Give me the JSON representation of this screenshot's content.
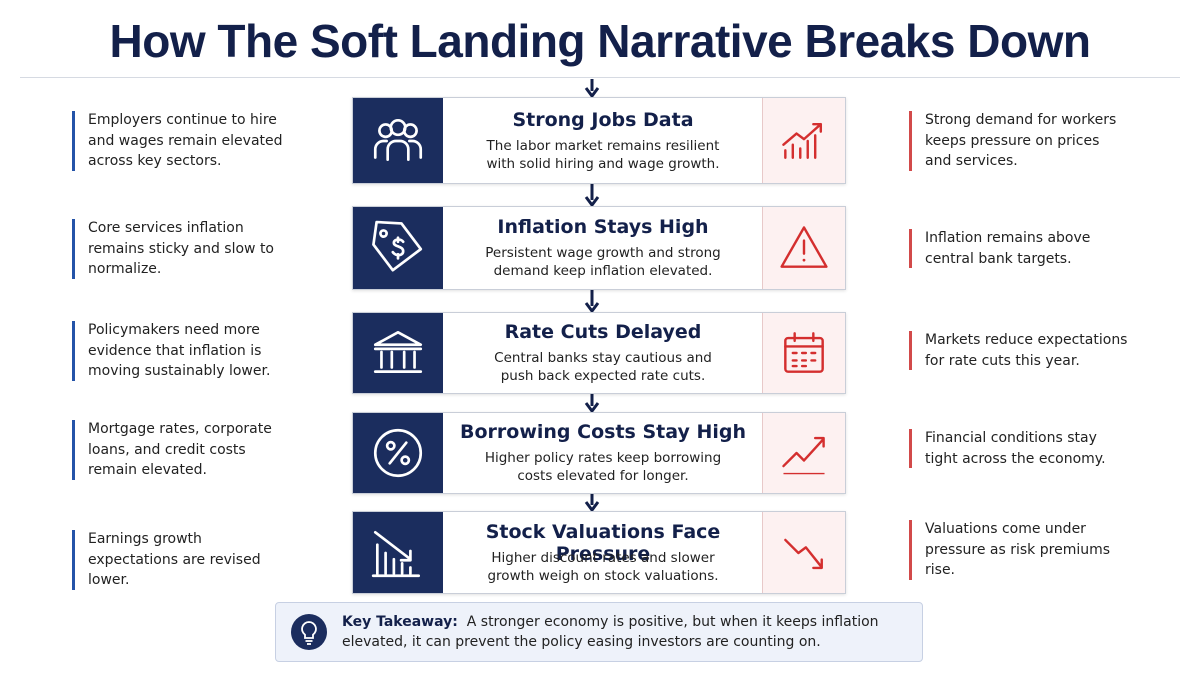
{
  "title": "How The Soft Landing Narrative Breaks Down",
  "steps": [
    {
      "title": "Strong Jobs Data",
      "description": "The labor market remains resilient with solid hiring and wage growth.",
      "left_note": "Employers continue to hire and wages remain elevated across key sectors.",
      "right_note": "Strong demand for workers keeps pressure on prices and services."
    },
    {
      "title": "Inflation Stays High",
      "description": "Persistent wage growth and strong demand keep inflation elevated.",
      "left_note": "Core services inflation remains sticky and slow to normalize.",
      "right_note": "Inflation remains above central bank targets."
    },
    {
      "title": "Rate Cuts Delayed",
      "description": "Central banks stay cautious and push back expected rate cuts.",
      "left_note": "Policymakers need more evidence that inflation is moving sustainably lower.",
      "right_note": "Markets reduce expectations for rate cuts this year."
    },
    {
      "title": "Borrowing Costs Stay High",
      "description": "Higher policy rates keep borrowing costs elevated for longer.",
      "left_note": "Mortgage rates, corporate loans, and credit costs remain elevated.",
      "right_note": "Financial conditions stay tight across the economy."
    },
    {
      "title": "Stock Valuations Face Pressure",
      "description": "Higher discount rates and slower growth weigh on stock valuations.",
      "left_note": "Earnings growth expectations are revised lower.",
      "right_note": "Valuations come under pressure as risk premiums rise."
    }
  ],
  "takeaway": {
    "label": "Key Takeaway:",
    "text": "A stronger economy is positive, but when it keeps inflation elevated, it can prevent the policy easing investors are counting on."
  }
}
